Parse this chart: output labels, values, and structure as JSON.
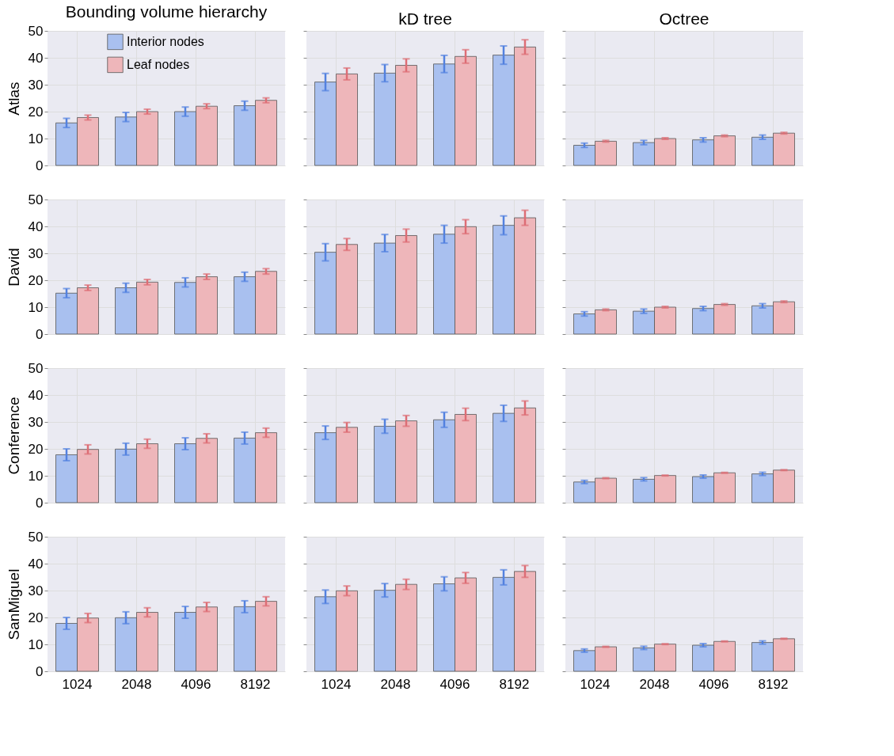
{
  "chart_data": [
    {
      "type": "bar",
      "title": "Bounding volume hierarchy",
      "ylabel": "Atlas",
      "categories": [
        "1024",
        "2048",
        "4096",
        "8192"
      ],
      "series": [
        {
          "name": "Interior nodes",
          "color": "#a9c0ef",
          "values": [
            15.8,
            18,
            20,
            22.2
          ],
          "errors": [
            1.7,
            1.7,
            1.7,
            1.7
          ]
        },
        {
          "name": "Leaf nodes",
          "color": "#eeb6ba",
          "values": [
            17.8,
            20,
            22,
            24.2
          ],
          "errors": [
            0.9,
            0.9,
            0.9,
            0.9
          ]
        }
      ],
      "ylim": [
        0,
        50
      ],
      "yticks": [
        0,
        10,
        20,
        30,
        40,
        50
      ],
      "grid": true,
      "legend": "top",
      "tick_labels": "y"
    },
    {
      "type": "bar",
      "title": "kD tree",
      "categories": [
        "1024",
        "2048",
        "4096",
        "8192"
      ],
      "series": [
        {
          "color": "#a9c0ef",
          "values": [
            31,
            34.3,
            37.7,
            41
          ],
          "errors": [
            3.2,
            3.2,
            3.2,
            3.4
          ]
        },
        {
          "color": "#eeb6ba",
          "values": [
            34,
            37.2,
            40.5,
            44
          ],
          "errors": [
            2.2,
            2.4,
            2.5,
            2.7
          ]
        }
      ],
      "ylim": [
        0,
        50
      ],
      "yticks": [
        0,
        10,
        20,
        30,
        40,
        50
      ],
      "grid": true,
      "tick_labels": false
    },
    {
      "type": "bar",
      "title": "Octree",
      "categories": [
        "1024",
        "2048",
        "4096",
        "8192"
      ],
      "series": [
        {
          "color": "#a9c0ef",
          "values": [
            7.5,
            8.5,
            9.5,
            10.5
          ],
          "errors": [
            0.8,
            0.8,
            0.8,
            0.8
          ]
        },
        {
          "color": "#eeb6ba",
          "values": [
            9,
            10,
            11,
            12
          ],
          "errors": [
            0.3,
            0.3,
            0.3,
            0.3
          ]
        }
      ],
      "ylim": [
        0,
        50
      ],
      "yticks": [
        0,
        10,
        20,
        30,
        40,
        50
      ],
      "grid": true,
      "tick_labels": false
    },
    {
      "type": "bar",
      "ylabel": "David",
      "categories": [
        "1024",
        "2048",
        "4096",
        "8192"
      ],
      "series": [
        {
          "color": "#a9c0ef",
          "values": [
            15.2,
            17.2,
            19.2,
            21.3
          ],
          "errors": [
            1.7,
            1.7,
            1.7,
            1.7
          ]
        },
        {
          "color": "#eeb6ba",
          "values": [
            17.2,
            19.3,
            21.3,
            23.3
          ],
          "errors": [
            1.0,
            1.0,
            1.0,
            1.0
          ]
        }
      ],
      "ylim": [
        0,
        50
      ],
      "yticks": [
        0,
        10,
        20,
        30,
        40,
        50
      ],
      "grid": true,
      "tick_labels": "y"
    },
    {
      "type": "bar",
      "categories": [
        "1024",
        "2048",
        "4096",
        "8192"
      ],
      "series": [
        {
          "color": "#a9c0ef",
          "values": [
            30.4,
            33.8,
            37.1,
            40.4
          ],
          "errors": [
            3.2,
            3.2,
            3.3,
            3.5
          ]
        },
        {
          "color": "#eeb6ba",
          "values": [
            33.3,
            36.6,
            39.9,
            43.2
          ],
          "errors": [
            2.2,
            2.4,
            2.6,
            2.8
          ]
        }
      ],
      "ylim": [
        0,
        50
      ],
      "yticks": [
        0,
        10,
        20,
        30,
        40,
        50
      ],
      "grid": true,
      "tick_labels": false
    },
    {
      "type": "bar",
      "categories": [
        "1024",
        "2048",
        "4096",
        "8192"
      ],
      "series": [
        {
          "color": "#a9c0ef",
          "values": [
            7.5,
            8.5,
            9.5,
            10.5
          ],
          "errors": [
            0.8,
            0.8,
            0.8,
            0.8
          ]
        },
        {
          "color": "#eeb6ba",
          "values": [
            9,
            10,
            11,
            12
          ],
          "errors": [
            0.3,
            0.3,
            0.3,
            0.3
          ]
        }
      ],
      "ylim": [
        0,
        50
      ],
      "yticks": [
        0,
        10,
        20,
        30,
        40,
        50
      ],
      "grid": true,
      "tick_labels": false
    },
    {
      "type": "bar",
      "ylabel": "Conference",
      "categories": [
        "1024",
        "2048",
        "4096",
        "8192"
      ],
      "series": [
        {
          "color": "#a9c0ef",
          "values": [
            17.8,
            19.9,
            21.9,
            24
          ],
          "errors": [
            2.2,
            2.2,
            2.2,
            2.2
          ]
        },
        {
          "color": "#eeb6ba",
          "values": [
            19.8,
            21.9,
            23.9,
            26
          ],
          "errors": [
            1.7,
            1.7,
            1.7,
            1.7
          ]
        }
      ],
      "ylim": [
        0,
        50
      ],
      "yticks": [
        0,
        10,
        20,
        30,
        40,
        50
      ],
      "grid": true,
      "tick_labels": "y"
    },
    {
      "type": "bar",
      "categories": [
        "1024",
        "2048",
        "4096",
        "8192"
      ],
      "series": [
        {
          "color": "#a9c0ef",
          "values": [
            26,
            28.4,
            30.8,
            33.2
          ],
          "errors": [
            2.5,
            2.6,
            2.8,
            3.0
          ]
        },
        {
          "color": "#eeb6ba",
          "values": [
            28,
            30.4,
            32.8,
            35.2
          ],
          "errors": [
            1.8,
            2.0,
            2.3,
            2.6
          ]
        }
      ],
      "ylim": [
        0,
        50
      ],
      "yticks": [
        0,
        10,
        20,
        30,
        40,
        50
      ],
      "grid": true,
      "tick_labels": false
    },
    {
      "type": "bar",
      "categories": [
        "1024",
        "2048",
        "4096",
        "8192"
      ],
      "series": [
        {
          "color": "#a9c0ef",
          "values": [
            7.7,
            8.7,
            9.7,
            10.7
          ],
          "errors": [
            0.6,
            0.6,
            0.6,
            0.6
          ]
        },
        {
          "color": "#eeb6ba",
          "values": [
            9.1,
            10.1,
            11.1,
            12.1
          ],
          "errors": [
            0.15,
            0.15,
            0.15,
            0.15
          ]
        }
      ],
      "ylim": [
        0,
        50
      ],
      "yticks": [
        0,
        10,
        20,
        30,
        40,
        50
      ],
      "grid": true,
      "tick_labels": false
    },
    {
      "type": "bar",
      "ylabel": "SanMiguel",
      "categories": [
        "1024",
        "2048",
        "4096",
        "8192"
      ],
      "series": [
        {
          "color": "#a9c0ef",
          "values": [
            17.8,
            19.9,
            21.9,
            24
          ],
          "errors": [
            2.2,
            2.2,
            2.2,
            2.2
          ]
        },
        {
          "color": "#eeb6ba",
          "values": [
            19.8,
            21.9,
            23.9,
            26
          ],
          "errors": [
            1.7,
            1.7,
            1.7,
            1.7
          ]
        }
      ],
      "ylim": [
        0,
        50
      ],
      "yticks": [
        0,
        10,
        20,
        30,
        40,
        50
      ],
      "grid": true
    },
    {
      "type": "bar",
      "categories": [
        "1024",
        "2048",
        "4096",
        "8192"
      ],
      "series": [
        {
          "color": "#a9c0ef",
          "values": [
            27.7,
            30.1,
            32.5,
            34.9
          ],
          "errors": [
            2.5,
            2.5,
            2.6,
            2.8
          ]
        },
        {
          "color": "#eeb6ba",
          "values": [
            29.9,
            32.3,
            34.7,
            37.1
          ],
          "errors": [
            1.8,
            1.9,
            2.0,
            2.2
          ]
        }
      ],
      "ylim": [
        0,
        50
      ],
      "yticks": [
        0,
        10,
        20,
        30,
        40,
        50
      ],
      "grid": true,
      "tick_labels": "x"
    },
    {
      "type": "bar",
      "categories": [
        "1024",
        "2048",
        "4096",
        "8192"
      ],
      "series": [
        {
          "color": "#a9c0ef",
          "values": [
            7.7,
            8.7,
            9.7,
            10.7
          ],
          "errors": [
            0.6,
            0.6,
            0.6,
            0.6
          ]
        },
        {
          "color": "#eeb6ba",
          "values": [
            9.1,
            10.1,
            11.1,
            12.1
          ],
          "errors": [
            0.15,
            0.15,
            0.15,
            0.15
          ]
        }
      ],
      "ylim": [
        0,
        50
      ],
      "yticks": [
        0,
        10,
        20,
        30,
        40,
        50
      ],
      "grid": true,
      "tick_labels": "x"
    }
  ]
}
